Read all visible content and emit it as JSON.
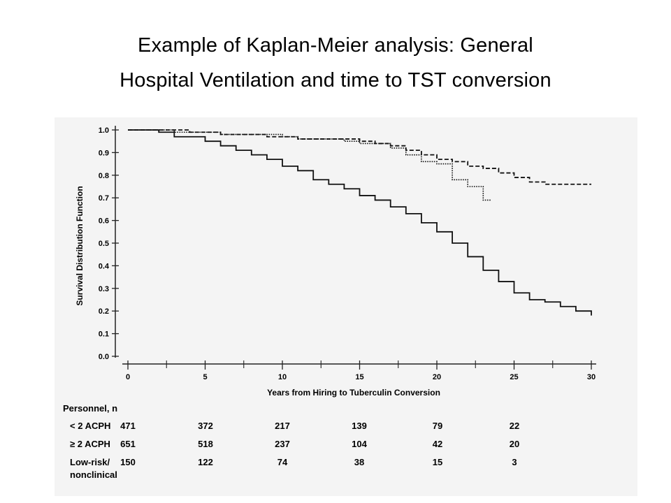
{
  "slide": {
    "title_line1": "Example of Kaplan-Meier analysis: General",
    "title_line2": "Hospital Ventilation and time to TST conversion"
  },
  "chart_data": {
    "type": "line",
    "title": "",
    "xlabel": "Years from Hiring to Tuberculin Conversion",
    "ylabel": "Survival Distribution Function",
    "xlim": [
      0,
      30
    ],
    "ylim": [
      0.0,
      1.0
    ],
    "x_ticks": [
      0,
      5,
      10,
      15,
      20,
      25,
      30
    ],
    "x_tick_labels": [
      "0",
      "5",
      "10",
      "15",
      "20",
      "25",
      "30"
    ],
    "y_ticks": [
      0.0,
      0.1,
      0.2,
      0.3,
      0.4,
      0.5,
      0.6,
      0.7,
      0.8,
      0.9,
      1.0
    ],
    "y_tick_labels": [
      "0.0",
      "0.1",
      "0.2",
      "0.3",
      "0.4",
      "0.5",
      "0.6",
      "0.7",
      "0.8",
      "0.9",
      "1.0"
    ],
    "grid": false,
    "series": [
      {
        "style": "solid",
        "step": true,
        "x": [
          0,
          2,
          3,
          5,
          6,
          7,
          8,
          9,
          10,
          11,
          12,
          13,
          14,
          15,
          16,
          17,
          18,
          19,
          20,
          21,
          22,
          23,
          24,
          25,
          26,
          27,
          28,
          29,
          30
        ],
        "y": [
          1.0,
          0.99,
          0.97,
          0.95,
          0.93,
          0.91,
          0.89,
          0.87,
          0.84,
          0.82,
          0.78,
          0.76,
          0.74,
          0.71,
          0.69,
          0.66,
          0.63,
          0.59,
          0.55,
          0.5,
          0.44,
          0.38,
          0.33,
          0.28,
          0.25,
          0.24,
          0.22,
          0.2,
          0.18
        ]
      },
      {
        "style": "dashed",
        "step": true,
        "x": [
          0,
          4,
          6,
          9,
          11,
          13,
          15,
          16,
          17,
          18,
          19,
          20,
          21,
          22,
          23,
          24,
          25,
          26,
          27,
          28,
          29,
          30
        ],
        "y": [
          1.0,
          0.99,
          0.98,
          0.97,
          0.96,
          0.96,
          0.95,
          0.94,
          0.93,
          0.91,
          0.89,
          0.87,
          0.86,
          0.84,
          0.83,
          0.81,
          0.79,
          0.77,
          0.76,
          0.76,
          0.76,
          0.76
        ]
      },
      {
        "style": "dotted",
        "step": true,
        "x": [
          0,
          3,
          6,
          10,
          11,
          14,
          15,
          16,
          17,
          18,
          19,
          20,
          21,
          22,
          23,
          23.5
        ],
        "y": [
          1.0,
          0.99,
          0.98,
          0.97,
          0.96,
          0.95,
          0.94,
          0.94,
          0.92,
          0.89,
          0.86,
          0.85,
          0.78,
          0.75,
          0.69,
          0.69
        ]
      }
    ],
    "risk_table": {
      "header": "Personnel, n",
      "rows": [
        {
          "label": "< 2 ACPH",
          "values": [
            "471",
            "372",
            "217",
            "139",
            "79",
            "22"
          ]
        },
        {
          "label": "≥ 2 ACPH",
          "values": [
            "651",
            "518",
            "237",
            "104",
            "42",
            "20"
          ]
        },
        {
          "label": "Low-risk/",
          "label2": "nonclinical",
          "values": [
            "150",
            "122",
            "74",
            "38",
            "15",
            "3"
          ]
        }
      ]
    }
  }
}
